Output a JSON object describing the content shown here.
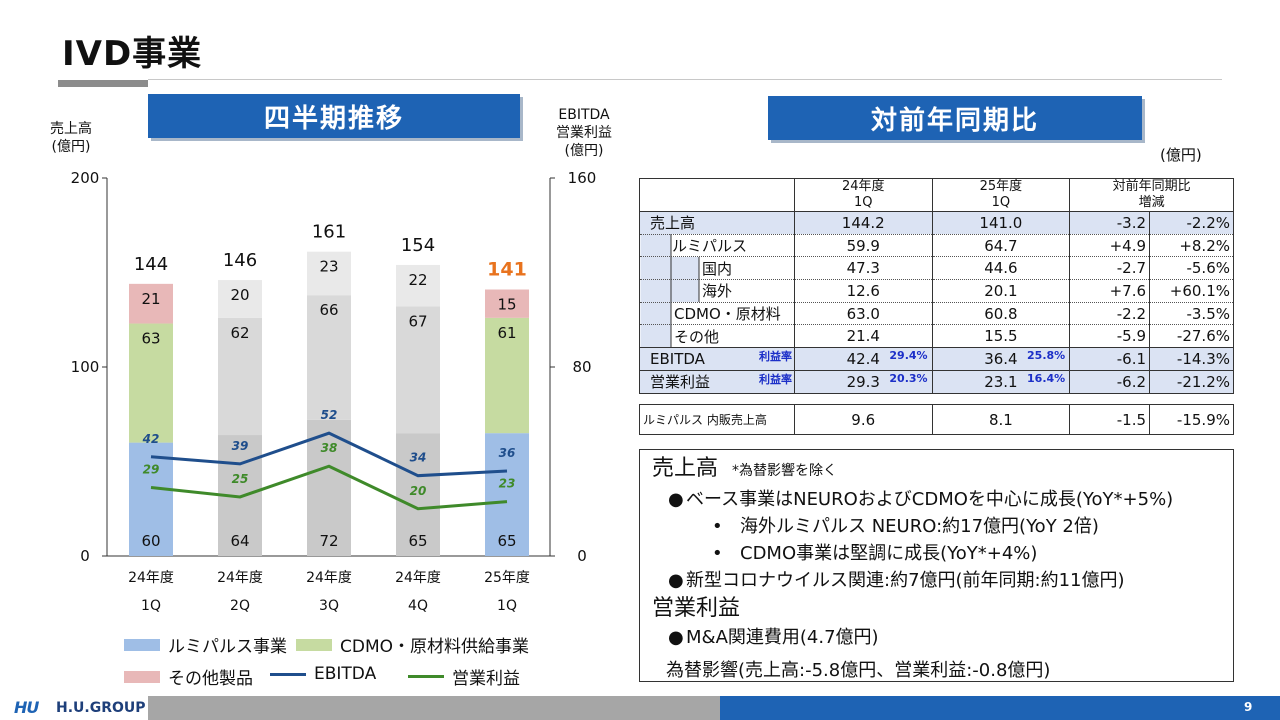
{
  "page": {
    "title": "IVD事業",
    "page_number": "9",
    "logo_mark": "HU",
    "logo_text": "H.U.GROUP"
  },
  "banners": {
    "left": "四半期推移",
    "right": "対前年同期比"
  },
  "chart_caps": {
    "left_line1": "売上高",
    "left_line2": "(億円)",
    "right_line1": "EBITDA",
    "right_line2": "営業利益",
    "right_line3": "(億円)"
  },
  "chart_data": {
    "type": "bar",
    "categories": [
      [
        "24年度",
        "1Q"
      ],
      [
        "24年度",
        "2Q"
      ],
      [
        "24年度",
        "3Q"
      ],
      [
        "24年度",
        "4Q"
      ],
      [
        "25年度",
        "1Q"
      ]
    ],
    "left_axis": {
      "ylim": [
        0,
        200
      ],
      "ticks": [
        "0",
        "100",
        "200"
      ]
    },
    "right_axis": {
      "ylim": [
        0,
        160
      ],
      "ticks": [
        "0",
        "80",
        "160"
      ]
    },
    "bar_series": [
      {
        "name": "ルミパルス事業",
        "values": [
          60,
          64,
          72,
          65,
          65
        ],
        "highlight_color": "#9fbee6"
      },
      {
        "name": "CDMO・原材料供給事業",
        "values": [
          63,
          62,
          66,
          67,
          61
        ],
        "highlight_color": "#c6dba1"
      },
      {
        "name": "その他製品",
        "values": [
          21,
          20,
          23,
          22,
          15
        ],
        "highlight_color": "#e8b8b8"
      }
    ],
    "gray_colors": [
      "#c9c9c9",
      "#d9d9d9",
      "#e9e9e9"
    ],
    "highlighted_bars": [
      0,
      4
    ],
    "totals": [
      144,
      146,
      161,
      154,
      141
    ],
    "total_highlight_index": 4,
    "total_highlight_color": "#e8731e",
    "line_series": [
      {
        "name": "EBITDA",
        "values": [
          42,
          39,
          52,
          34,
          36
        ],
        "color": "#1f4e8c"
      },
      {
        "name": "営業利益",
        "values": [
          29,
          25,
          38,
          20,
          23
        ],
        "color": "#3f8a2a"
      }
    ]
  },
  "legend": {
    "lumi": "ルミパルス事業",
    "cdmo": "CDMO・原材料供給事業",
    "other": "その他製品",
    "ebitda": "EBITDA",
    "op": "営業利益",
    "colors": {
      "lumi": "#9fbee6",
      "cdmo": "#c6dba1",
      "other": "#e8b8b8",
      "ebitda": "#1f4e8c",
      "op": "#3f8a2a"
    }
  },
  "table": {
    "unit": "(億円)",
    "headers": {
      "y24_1": "24年度",
      "y24_2": "1Q",
      "y25_1": "25年度",
      "y25_2": "1Q",
      "yoy_1": "対前年同期比",
      "yoy_2": "増減"
    },
    "rows": {
      "sales": {
        "label": "売上高",
        "a": "144.2",
        "b": "141.0",
        "diff": "-3.2",
        "pct": "-2.2%"
      },
      "lumi": {
        "label": "ルミパルス",
        "a": "59.9",
        "b": "64.7",
        "diff": "+4.9",
        "pct": "+8.2%"
      },
      "domestic": {
        "label": "国内",
        "a": "47.3",
        "b": "44.6",
        "diff": "-2.7",
        "pct": "-5.6%"
      },
      "overseas": {
        "label": "海外",
        "a": "12.6",
        "b": "20.1",
        "diff": "+7.6",
        "pct": "+60.1%"
      },
      "cdmo": {
        "label": "CDMO・原材料",
        "a": "63.0",
        "b": "60.8",
        "diff": "-2.2",
        "pct": "-3.5%"
      },
      "other": {
        "label": "その他",
        "a": "21.4",
        "b": "15.5",
        "diff": "-5.9",
        "pct": "-27.6%"
      },
      "ebitda": {
        "label": "EBITDA",
        "tag": "利益率",
        "a": "42.4",
        "a_rate": "29.4%",
        "b": "36.4",
        "b_rate": "25.8%",
        "diff": "-6.1",
        "pct": "-14.3%"
      },
      "op": {
        "label": "営業利益",
        "tag": "利益率",
        "a": "29.3",
        "a_rate": "20.3%",
        "b": "23.1",
        "b_rate": "16.4%",
        "diff": "-6.2",
        "pct": "-21.2%"
      }
    },
    "lumi_internal": {
      "label": "ルミパルス 内販売上高",
      "a": "9.6",
      "b": "8.1",
      "diff": "-1.5",
      "pct": "-15.9%"
    }
  },
  "notes": {
    "h1": "売上高",
    "h1_note": "*為替影響を除く",
    "b1": "ベース事業はNEUROおよびCDMOを中心に成長(YoY*+5%)",
    "s1": "海外ルミパルス NEURO:約17億円(YoY 2倍)",
    "s2": "CDMO事業は堅調に成長(YoY*+4%)",
    "b2": "新型コロナウイルス関連:約7億円(前年同期:約11億円)",
    "h2": "営業利益",
    "b3": "M&A関連費用(4.7億円)",
    "fx": "為替影響(売上高:-5.8億円、営業利益:-0.8億円)"
  }
}
